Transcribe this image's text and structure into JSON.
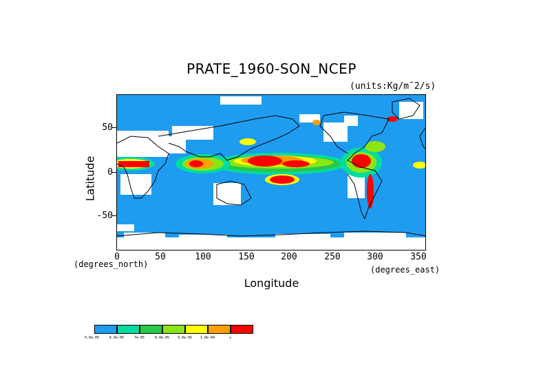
{
  "title": "PRATE_1960-SON_NCEP",
  "units": "(units:Kg/m¯2/s)",
  "y_axis": {
    "label": "Latitude",
    "ticks": [
      "50",
      "0",
      "-50"
    ]
  },
  "x_axis": {
    "label": "Longitude",
    "ticks": [
      "0",
      "50",
      "100",
      "150",
      "200",
      "250",
      "300",
      "350"
    ]
  },
  "axis_unit_left": "(degrees_north)",
  "axis_unit_right": "(degrees_east)",
  "colors": {
    "ocean_base": "#1e9cf0",
    "missing": "#ffffff",
    "coast": "#000000"
  },
  "legend": {
    "colors": [
      "#1e9cf0",
      "#00dca0",
      "#28c848",
      "#8ce614",
      "#ffff00",
      "#ffa000",
      "#ff0000"
    ],
    "labels": [
      "5.0e-05",
      "6.0e-05",
      "7e-05",
      "8.0e-05",
      "9.0e-05",
      "1.0e-04",
      "∞"
    ]
  },
  "chart_data": {
    "type": "heatmap",
    "title": "PRATE_1960-SON_NCEP",
    "xlabel": "Longitude",
    "ylabel": "Latitude",
    "xlim": [
      0,
      360
    ],
    "ylim": [
      -90,
      90
    ],
    "units": "Kg/m^2/s",
    "precipitation_maxima": [
      {
        "lon": 20,
        "lat": 10,
        "level": "1.0e-04"
      },
      {
        "lon": 105,
        "lat": 12,
        "level": "1.0e-04"
      },
      {
        "lon": 165,
        "lat": 12,
        "level": "1.0e-04"
      },
      {
        "lon": 190,
        "lat": -8,
        "level": "1.0e-04"
      },
      {
        "lon": 280,
        "lat": 15,
        "level": "1.0e-04"
      },
      {
        "lon": 290,
        "lat": -20,
        "level": "1.0e-04"
      }
    ]
  }
}
